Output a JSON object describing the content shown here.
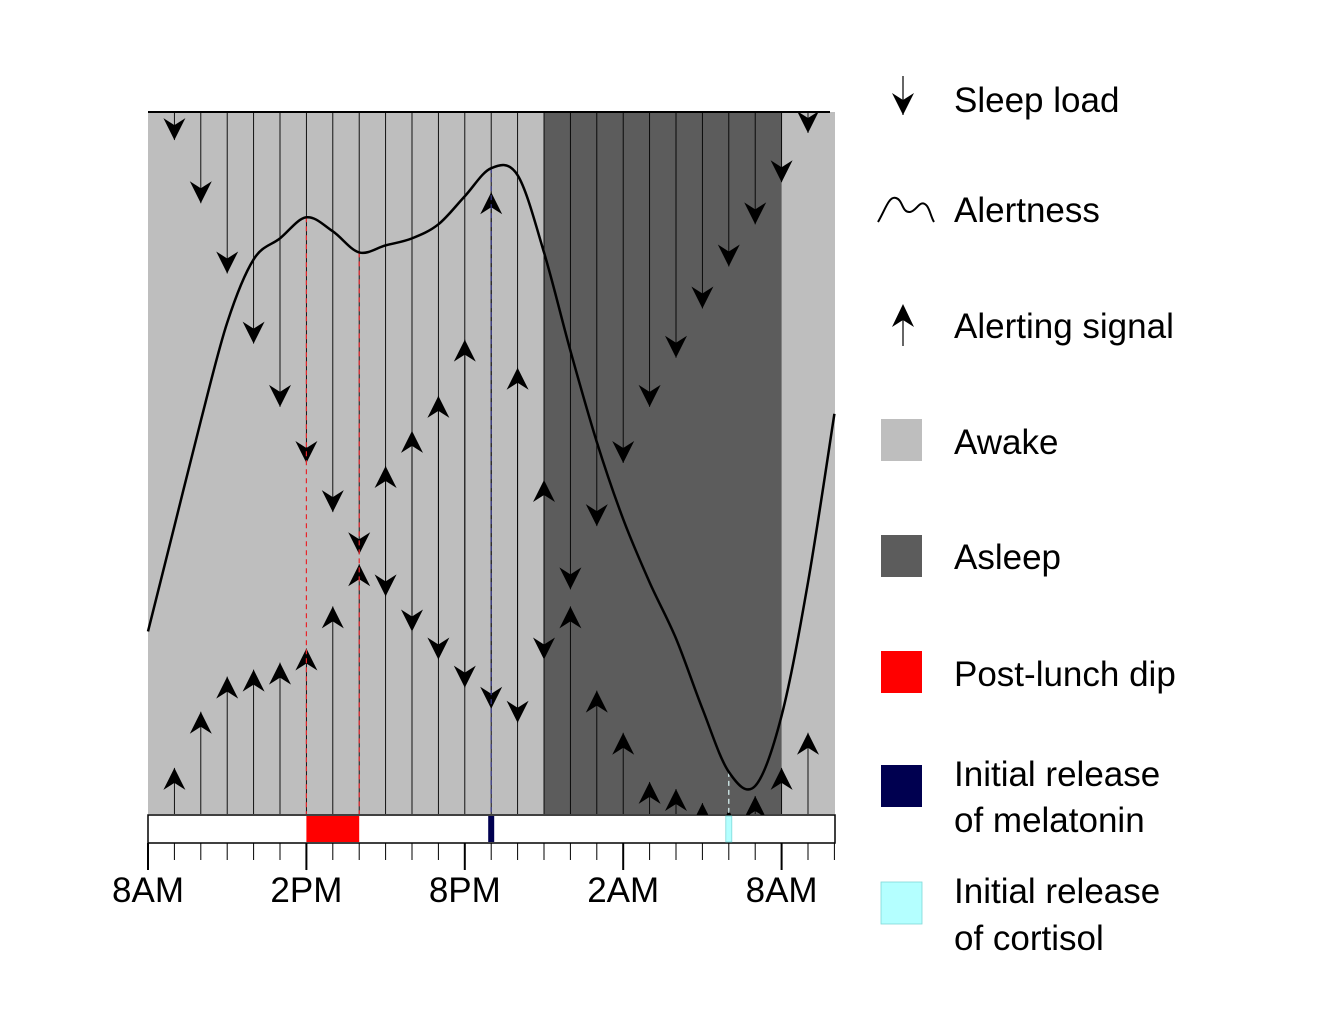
{
  "chart_data": {
    "type": "line",
    "x_axis": {
      "unit": "hours since 8AM",
      "range": [
        0,
        26
      ],
      "tick_labels": [
        {
          "x": 0,
          "label": "8AM"
        },
        {
          "x": 6,
          "label": "2PM"
        },
        {
          "x": 12,
          "label": "8PM"
        },
        {
          "x": 18,
          "label": "2AM"
        },
        {
          "x": 24,
          "label": "8AM"
        }
      ]
    },
    "sleep_period": [
      15,
      24
    ],
    "post_lunch_dip": [
      6,
      8
    ],
    "melatonin_release": 13,
    "cortisol_release": 22,
    "alertness_peaks": {
      "lunch_peak": 6,
      "dip_min": 8,
      "evening_peak": 13
    },
    "series": [
      {
        "name": "Sleep load",
        "x": [
          1,
          2,
          3,
          4,
          5,
          6,
          7,
          8,
          9,
          10,
          11,
          12,
          13,
          14,
          15,
          16,
          17,
          18,
          19,
          20,
          21,
          22,
          23,
          24,
          25
        ],
        "values": [
          0.96,
          0.87,
          0.77,
          0.67,
          0.58,
          0.5,
          0.43,
          0.37,
          0.31,
          0.26,
          0.22,
          0.18,
          0.15,
          0.13,
          0.22,
          0.32,
          0.41,
          0.5,
          0.58,
          0.65,
          0.72,
          0.78,
          0.84,
          0.9,
          0.97
        ]
      },
      {
        "name": "Alerting signal",
        "x": [
          1,
          2,
          3,
          4,
          5,
          6,
          7,
          8,
          9,
          10,
          11,
          12,
          13,
          14,
          15,
          16,
          17,
          18,
          19,
          20,
          21,
          22,
          23,
          24,
          25
        ],
        "values": [
          0.06,
          0.14,
          0.19,
          0.2,
          0.21,
          0.23,
          0.29,
          0.35,
          0.49,
          0.54,
          0.59,
          0.67,
          0.88,
          0.63,
          0.47,
          0.29,
          0.17,
          0.11,
          0.04,
          0.03,
          0.01,
          0.0,
          0.02,
          0.06,
          0.11
        ]
      },
      {
        "name": "Alertness",
        "x": [
          0,
          1,
          2,
          3,
          4,
          5,
          6,
          7,
          8,
          9,
          10,
          11,
          12,
          13,
          14,
          15,
          16,
          17,
          18,
          19,
          20,
          21,
          22,
          23,
          24,
          25,
          26
        ],
        "values": [
          0.26,
          0.41,
          0.56,
          0.7,
          0.79,
          0.82,
          0.85,
          0.83,
          0.8,
          0.81,
          0.82,
          0.84,
          0.88,
          0.92,
          0.91,
          0.8,
          0.66,
          0.53,
          0.42,
          0.33,
          0.25,
          0.15,
          0.06,
          0.04,
          0.14,
          0.33,
          0.57
        ]
      }
    ],
    "legend": {
      "position": "right",
      "entries": [
        {
          "key": "sleep_load",
          "label": "Sleep load",
          "symbol": "arrow-down"
        },
        {
          "key": "alertness",
          "label": "Alertness",
          "symbol": "wave-line"
        },
        {
          "key": "alerting_signal",
          "label": "Alerting signal",
          "symbol": "arrow-up"
        },
        {
          "key": "awake",
          "label": "Awake",
          "symbol": "swatch",
          "color": "#bebebe"
        },
        {
          "key": "asleep",
          "label": "Asleep",
          "symbol": "swatch",
          "color": "#5c5c5c"
        },
        {
          "key": "post_lunch_dip",
          "label": "Post-lunch dip",
          "symbol": "swatch",
          "color": "#ff0000"
        },
        {
          "key": "melatonin",
          "label": "Initial release of melatonin",
          "lines": [
            "Initial release",
            "of melatonin"
          ],
          "symbol": "swatch",
          "color": "#000050"
        },
        {
          "key": "cortisol",
          "label": "Initial release of cortisol",
          "lines": [
            "Initial release",
            "of cortisol"
          ],
          "symbol": "swatch",
          "color": "#b4ffff"
        }
      ]
    },
    "colors": {
      "awake": "#bebebe",
      "asleep": "#5c5c5c",
      "post_lunch_dip": "#ff0000",
      "melatonin": "#000050",
      "cortisol": "#b4ffff",
      "dip_guides": "#e8252b",
      "melatonin_guide": "#3a3a8c",
      "cortisol_guide": "#dffcfc"
    }
  }
}
